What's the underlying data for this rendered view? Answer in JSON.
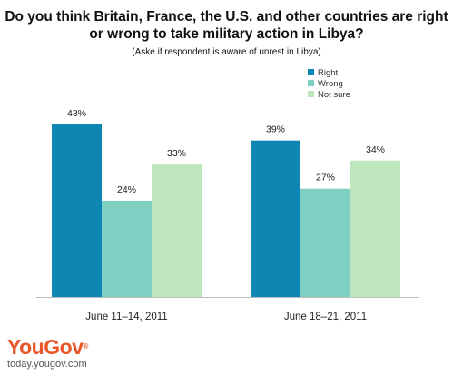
{
  "chart_data": {
    "type": "bar",
    "title_lines": [
      "Do you think Britain, France, the U.S. and other countries are right",
      "or wrong to take military action in Libya?"
    ],
    "subtitle": "(Aske if respondent is aware of unrest in Libya)",
    "categories": [
      "June 11–14, 2011",
      "June 18–21, 2011"
    ],
    "series": [
      {
        "name": "Right",
        "color": "#0e86b4",
        "values": [
          43,
          39
        ],
        "labels": [
          "43%",
          "39%"
        ]
      },
      {
        "name": "Wrong",
        "color": "#7fcfc3",
        "values": [
          24,
          27
        ],
        "labels": [
          "24%",
          "27%"
        ]
      },
      {
        "name": "Not sure",
        "color": "#bde6bd",
        "values": [
          33,
          34
        ],
        "labels": [
          "33%",
          "34%"
        ]
      }
    ],
    "ylim": [
      0,
      43
    ],
    "legend_position": "top-right",
    "grid": false
  },
  "logo": {
    "brand": "YouGov",
    "mark": "®",
    "url": "today.yougov.com"
  }
}
